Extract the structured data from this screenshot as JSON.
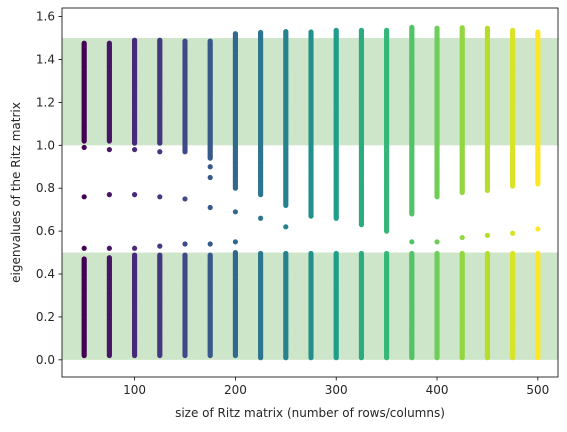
{
  "chart_data": {
    "type": "scatter",
    "title": "",
    "xlabel": "size of Ritz matrix (number of rows/columns)",
    "ylabel": "eigenvalues of the Ritz matrix",
    "xlim": [
      28,
      520
    ],
    "ylim": [
      -0.08,
      1.64
    ],
    "xticks": [
      100,
      200,
      300,
      400,
      500
    ],
    "xtick_labels": [
      "100",
      "200",
      "300",
      "400",
      "500"
    ],
    "yticks": [
      0.0,
      0.2,
      0.4,
      0.6,
      0.8,
      1.0,
      1.2,
      1.4,
      1.6
    ],
    "ytick_labels": [
      "0.0",
      "0.2",
      "0.4",
      "0.6",
      "0.8",
      "1.0",
      "1.2",
      "1.4",
      "1.6"
    ],
    "grid": false,
    "colormap": "viridis",
    "bands": [
      {
        "y0": 0.0,
        "y1": 0.5,
        "color": "#cde5c8"
      },
      {
        "y0": 1.0,
        "y1": 1.5,
        "color": "#cde5c8"
      }
    ],
    "x": [
      50,
      75,
      100,
      125,
      150,
      175,
      200,
      225,
      250,
      275,
      300,
      325,
      350,
      375,
      400,
      425,
      450,
      475,
      500
    ],
    "columns": [
      {
        "x": 50,
        "lower": [
          0.02,
          0.47
        ],
        "upper": [
          1.02,
          1.48
        ],
        "outliers": [
          0.52,
          0.76,
          0.99
        ]
      },
      {
        "x": 75,
        "lower": [
          0.02,
          0.48
        ],
        "upper": [
          1.02,
          1.48
        ],
        "outliers": [
          0.52,
          0.77,
          0.98
        ]
      },
      {
        "x": 100,
        "lower": [
          0.02,
          0.49
        ],
        "upper": [
          1.01,
          1.49
        ],
        "outliers": [
          0.52,
          0.77,
          0.98
        ]
      },
      {
        "x": 125,
        "lower": [
          0.02,
          0.49
        ],
        "upper": [
          1.01,
          1.49
        ],
        "outliers": [
          0.53,
          0.76,
          0.97
        ]
      },
      {
        "x": 150,
        "lower": [
          0.02,
          0.49
        ],
        "upper": [
          0.97,
          1.49
        ],
        "outliers": [
          0.54,
          0.75
        ]
      },
      {
        "x": 175,
        "lower": [
          0.02,
          0.49
        ],
        "upper": [
          0.94,
          1.49
        ],
        "outliers": [
          0.54,
          0.71,
          0.85,
          0.9
        ]
      },
      {
        "x": 200,
        "lower": [
          0.02,
          0.5
        ],
        "upper": [
          0.8,
          1.52
        ],
        "outliers": [
          0.55,
          0.69
        ]
      },
      {
        "x": 225,
        "lower": [
          0.01,
          0.5
        ],
        "upper": [
          0.77,
          1.53
        ],
        "outliers": [
          0.66
        ]
      },
      {
        "x": 250,
        "lower": [
          0.01,
          0.5
        ],
        "upper": [
          0.72,
          1.53
        ],
        "outliers": [
          0.62
        ]
      },
      {
        "x": 275,
        "lower": [
          0.01,
          0.5
        ],
        "upper": [
          0.67,
          1.53
        ],
        "outliers": []
      },
      {
        "x": 300,
        "lower": [
          0.01,
          0.5
        ],
        "upper": [
          0.66,
          1.54
        ],
        "outliers": []
      },
      {
        "x": 325,
        "lower": [
          0.01,
          0.5
        ],
        "upper": [
          0.63,
          1.54
        ],
        "outliers": []
      },
      {
        "x": 350,
        "lower": [
          0.01,
          0.5
        ],
        "upper": [
          0.6,
          1.54
        ],
        "outliers": []
      },
      {
        "x": 375,
        "lower": [
          0.01,
          0.5
        ],
        "upper": [
          0.68,
          1.55
        ],
        "outliers": [
          0.55
        ]
      },
      {
        "x": 400,
        "lower": [
          0.01,
          0.5
        ],
        "upper": [
          0.76,
          1.55
        ],
        "outliers": [
          0.55
        ]
      },
      {
        "x": 425,
        "lower": [
          0.01,
          0.5
        ],
        "upper": [
          0.78,
          1.55
        ],
        "outliers": [
          0.57
        ]
      },
      {
        "x": 450,
        "lower": [
          0.01,
          0.5
        ],
        "upper": [
          0.79,
          1.55
        ],
        "outliers": [
          0.58
        ]
      },
      {
        "x": 475,
        "lower": [
          0.01,
          0.5
        ],
        "upper": [
          0.81,
          1.54
        ],
        "outliers": [
          0.59
        ]
      },
      {
        "x": 500,
        "lower": [
          0.01,
          0.5
        ],
        "upper": [
          0.82,
          1.53
        ],
        "outliers": [
          0.61
        ]
      }
    ]
  }
}
